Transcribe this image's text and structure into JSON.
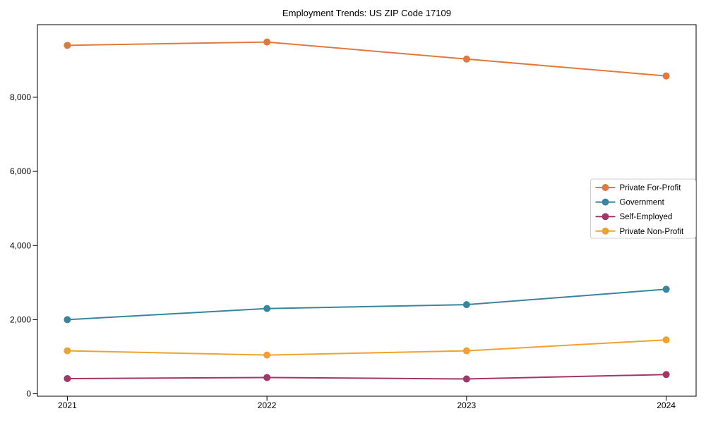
{
  "chart_data": {
    "type": "line",
    "title": "Employment Trends: US ZIP Code 17109",
    "categories": [
      2021,
      2022,
      2023,
      2024
    ],
    "x_tick_labels": [
      "2021",
      "2022",
      "2023",
      "2024"
    ],
    "series": [
      {
        "name": "Private For-Profit",
        "color": "#E1793E",
        "values": [
          9400,
          9490,
          9030,
          8575
        ]
      },
      {
        "name": "Government",
        "color": "#38859F",
        "values": [
          2000,
          2300,
          2405,
          2820
        ]
      },
      {
        "name": "Self-Employed",
        "color": "#A33668",
        "values": [
          410,
          440,
          400,
          520
        ]
      },
      {
        "name": "Private Non-Profit",
        "color": "#F0A12F",
        "values": [
          1160,
          1045,
          1160,
          1455
        ]
      }
    ],
    "xlim": [
      2020.85,
      2024.15
    ],
    "ylim": [
      -65,
      9958
    ],
    "y_ticks": [
      {
        "value": 0,
        "label": "0"
      },
      {
        "value": 2000,
        "label": "2,000"
      },
      {
        "value": 4000,
        "label": "4,000"
      },
      {
        "value": 6000,
        "label": "6,000"
      },
      {
        "value": 8000,
        "label": "8,000"
      }
    ],
    "grid": false,
    "legend": {
      "position": "right",
      "border_color": "#cccccc",
      "background": "#ffffff"
    },
    "style": {
      "axis_color": "#000000",
      "background": "#ffffff",
      "line_width": 2,
      "marker_radius": 5
    }
  }
}
